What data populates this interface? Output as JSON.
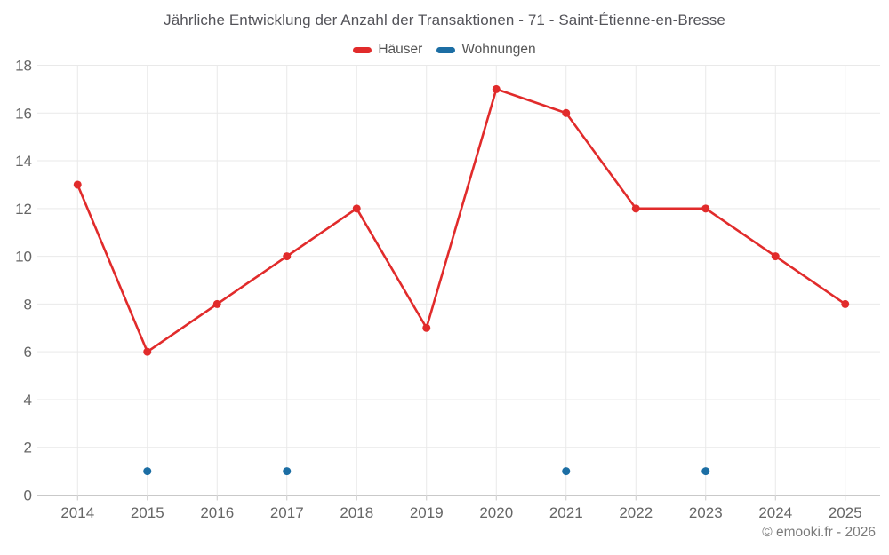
{
  "title": "Jährliche Entwicklung der Anzahl der Transaktionen - 71 - Saint-Étienne-en-Bresse",
  "legend": {
    "items": [
      {
        "label": "Häuser",
        "color": "#e12b2b"
      },
      {
        "label": "Wohnungen",
        "color": "#1c6ea4"
      }
    ]
  },
  "footer": {
    "credit": "© emooki.fr - 2026"
  },
  "chart_data": {
    "type": "line",
    "title": "Jährliche Entwicklung der Anzahl der Transaktionen - 71 - Saint-Étienne-en-Bresse",
    "categories": [
      "2014",
      "2015",
      "2016",
      "2017",
      "2018",
      "2019",
      "2020",
      "2021",
      "2022",
      "2023",
      "2024",
      "2025"
    ],
    "series": [
      {
        "name": "Häuser",
        "color": "#e12b2b",
        "values": [
          13,
          6,
          8,
          10,
          12,
          7,
          17,
          16,
          12,
          12,
          10,
          8
        ]
      },
      {
        "name": "Wohnungen",
        "color": "#1c6ea4",
        "values": [
          null,
          1,
          null,
          1,
          null,
          null,
          null,
          1,
          null,
          1,
          null,
          null
        ]
      }
    ],
    "xlabel": "",
    "ylabel": "",
    "ylim": [
      0,
      18
    ],
    "yticks": [
      0,
      2,
      4,
      6,
      8,
      10,
      12,
      14,
      16,
      18
    ],
    "grid": true,
    "legend_position": "top",
    "colors": {
      "grid": "#e9e9e9",
      "axis": "#c9c9c9",
      "tick_label": "#666666"
    }
  }
}
